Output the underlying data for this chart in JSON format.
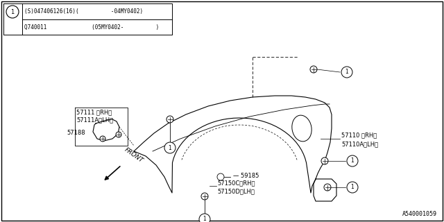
{
  "bg_color": "#ffffff",
  "title_row1": "(S)047406126(16)(          -04MY0402)",
  "title_row2": "Q740011              (05MY0402-          )",
  "footer_text": "A540001059",
  "lw": 0.8
}
